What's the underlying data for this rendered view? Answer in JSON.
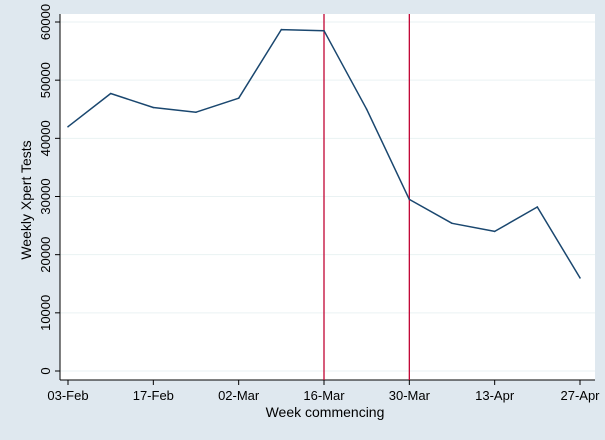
{
  "chart_data": {
    "type": "line",
    "title": "",
    "xlabel": "Week commencing",
    "ylabel": "Weekly Xpert Tests",
    "x_tick_labels": [
      "03-Feb",
      "17-Feb",
      "02-Mar",
      "16-Mar",
      "30-Mar",
      "13-Apr",
      "27-Apr"
    ],
    "x_tick_weeks": [
      0,
      2,
      4,
      6,
      8,
      10,
      12
    ],
    "xlim_weeks": [
      0,
      12
    ],
    "y_ticks": [
      0,
      10000,
      20000,
      30000,
      40000,
      50000,
      60000
    ],
    "y_tick_labels": [
      "0",
      "10000",
      "20000",
      "30000",
      "40000",
      "50000",
      "60000"
    ],
    "ylim": [
      0,
      60000
    ],
    "grid": "horizontal",
    "series": [
      {
        "name": "",
        "color": "#1a476f",
        "x_weeks": [
          0,
          1,
          2,
          3,
          4,
          5,
          6,
          7,
          8,
          9,
          10,
          11,
          12
        ],
        "values": [
          42000,
          47700,
          45300,
          44500,
          46900,
          58700,
          58500,
          45000,
          29500,
          25400,
          24000,
          28200,
          16000
        ]
      }
    ],
    "reference_lines": [
      {
        "x_week": 6,
        "color": "#c10534"
      },
      {
        "x_week": 8,
        "color": "#c10534"
      }
    ],
    "colors": {
      "background": "#dfe8ef",
      "plot_background": "#ffffff",
      "grid": "#eaf2f3"
    }
  }
}
